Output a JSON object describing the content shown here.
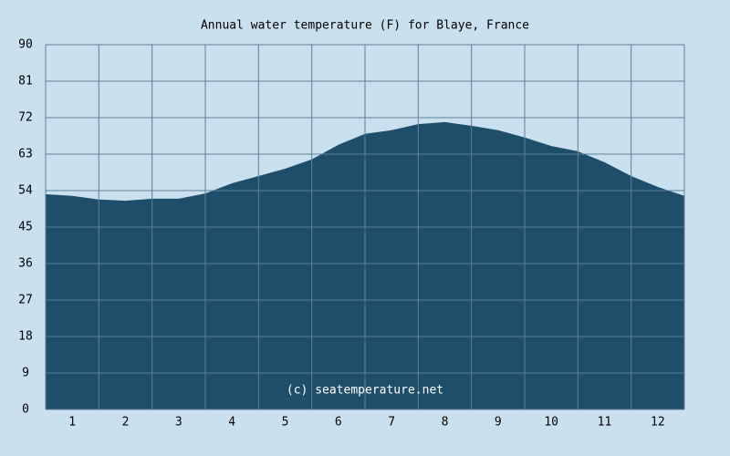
{
  "chart_data": {
    "type": "area",
    "title": "Annual water temperature (F) for Blaye, France",
    "annotation": "(c) seatemperature.net",
    "x": [
      0.5,
      1.0,
      1.5,
      2.0,
      2.5,
      3.0,
      3.5,
      4.0,
      4.5,
      5.0,
      5.5,
      6.0,
      6.5,
      7.0,
      7.5,
      8.0,
      8.5,
      9.0,
      9.5,
      10.0,
      10.5,
      11.0,
      11.5,
      12.0,
      12.5
    ],
    "values": [
      53.1,
      52.7,
      51.8,
      51.5,
      52.0,
      52.0,
      53.3,
      55.8,
      57.6,
      59.4,
      61.7,
      65.3,
      68.0,
      68.9,
      70.4,
      70.9,
      70.0,
      68.9,
      67.1,
      65.0,
      63.7,
      61.0,
      57.6,
      54.9,
      52.7
    ],
    "color": "#1f4e6a",
    "xlim": [
      0.5,
      12.5
    ],
    "xticks": [
      1,
      2,
      3,
      4,
      5,
      6,
      7,
      8,
      9,
      10,
      11,
      12
    ],
    "ylim": [
      0,
      90
    ],
    "yticks": [
      0,
      9,
      18,
      27,
      36,
      45,
      54,
      63,
      72,
      81,
      90
    ],
    "grid": true
  }
}
